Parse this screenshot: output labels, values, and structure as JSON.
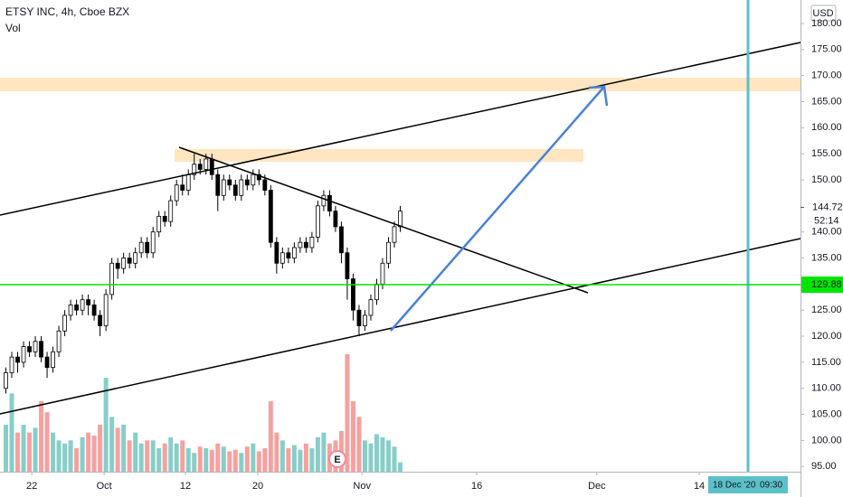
{
  "chart_data": {
    "type": "candlestick",
    "title": "ETSY INC, 4h, Cboe BZX",
    "subtitle": "Vol",
    "currency": "USD",
    "up_color": "#ffffff",
    "down_color": "#000000",
    "volume_up_color": "#26a69a",
    "volume_down_color": "#ef5350",
    "open": [
      110,
      113,
      116,
      115,
      118,
      117,
      119,
      116,
      114,
      117,
      121,
      124,
      126,
      125,
      127,
      126,
      124,
      122,
      128,
      134,
      133,
      135,
      134,
      136,
      138,
      136,
      140,
      143,
      142,
      146,
      149,
      148,
      151,
      153,
      152,
      154,
      151,
      147,
      150,
      149,
      147,
      150,
      149,
      151,
      150,
      148,
      138,
      134,
      136,
      135,
      137,
      138,
      137,
      139,
      145,
      147,
      144,
      141,
      136,
      131,
      125,
      122,
      124,
      127,
      130,
      134,
      138,
      141
    ],
    "high": [
      114,
      117,
      117,
      119,
      119,
      120,
      120,
      117,
      118,
      122,
      125,
      127,
      127,
      128,
      128,
      127,
      125,
      129,
      135,
      135,
      136,
      136,
      137,
      139,
      139,
      141,
      144,
      144,
      147,
      150,
      151,
      152,
      155,
      154,
      155,
      155,
      152,
      151,
      151,
      150,
      151,
      151,
      152,
      152,
      151,
      149,
      139,
      137,
      137,
      138,
      139,
      139,
      140,
      146,
      148,
      148,
      145,
      142,
      137,
      132,
      126,
      125,
      128,
      131,
      135,
      139,
      142,
      145
    ],
    "low": [
      109,
      112,
      113,
      114,
      116,
      116,
      115,
      112,
      113,
      116,
      120,
      123,
      124,
      124,
      124,
      123,
      120,
      121,
      127,
      131,
      132,
      133,
      133,
      135,
      135,
      135,
      139,
      141,
      141,
      145,
      147,
      147,
      150,
      151,
      151,
      150,
      144,
      146,
      148,
      146,
      146,
      148,
      148,
      149,
      147,
      137,
      132,
      133,
      134,
      134,
      136,
      136,
      136,
      138,
      144,
      143,
      140,
      134,
      127,
      123,
      120,
      121,
      123,
      126,
      129,
      133,
      137,
      140
    ],
    "close": [
      113,
      116,
      115,
      118,
      117,
      119,
      116,
      114,
      117,
      121,
      124,
      126,
      125,
      127,
      126,
      124,
      122,
      128,
      134,
      133,
      135,
      134,
      136,
      138,
      136,
      140,
      143,
      142,
      146,
      149,
      148,
      151,
      153,
      152,
      154,
      151,
      147,
      150,
      149,
      147,
      150,
      149,
      151,
      150,
      148,
      138,
      134,
      136,
      135,
      137,
      138,
      137,
      139,
      145,
      147,
      144,
      141,
      136,
      131,
      125,
      122,
      124,
      127,
      130,
      134,
      138,
      141,
      144
    ],
    "volume": [
      3,
      5,
      2.5,
      3,
      2.5,
      2.8,
      4.5,
      3.8,
      2.5,
      2,
      1.8,
      2,
      1.5,
      2.2,
      2.5,
      2.3,
      3,
      6,
      3.5,
      2.8,
      3,
      2,
      2.5,
      1.8,
      2,
      2,
      1.5,
      1.8,
      2.2,
      1.8,
      2,
      1.5,
      1.2,
      1.6,
      1.5,
      1.4,
      1.8,
      1.6,
      1.3,
      1.4,
      1.2,
      1.6,
      1.8,
      1.3,
      1.5,
      4.5,
      2.5,
      2,
      1.5,
      1.7,
      1.4,
      1.8,
      1.5,
      2.2,
      2.5,
      1.8,
      2,
      2.6,
      7.5,
      4.5,
      3.5,
      2,
      1.8,
      2.4,
      2.2,
      2,
      1.6,
      0.6
    ],
    "xlim": [
      -1,
      135
    ],
    "xticks": [
      {
        "value": 4.4,
        "label": "22"
      },
      {
        "value": 16.7,
        "label": "Oct"
      },
      {
        "value": 30.5,
        "label": "12"
      },
      {
        "value": 42.8,
        "label": "20"
      },
      {
        "value": 60.5,
        "label": "Nov"
      },
      {
        "value": 80,
        "label": "16"
      },
      {
        "value": 100.4,
        "label": "Dec"
      },
      {
        "value": 117.8,
        "label": "14"
      }
    ],
    "ylim": [
      94,
      184.5
    ],
    "yticks": [
      {
        "value": 180,
        "label": "180.00"
      },
      {
        "value": 175,
        "label": "175.00"
      },
      {
        "value": 170,
        "label": "170.00"
      },
      {
        "value": 165,
        "label": "165.00"
      },
      {
        "value": 160,
        "label": "160.00"
      },
      {
        "value": 155,
        "label": "155.00"
      },
      {
        "value": 150,
        "label": "150.00"
      },
      {
        "value": 140,
        "label": "140.00"
      },
      {
        "value": 135,
        "label": "135.00"
      },
      {
        "value": 125,
        "label": "125.00"
      },
      {
        "value": 120,
        "label": "120.00"
      },
      {
        "value": 115,
        "label": "115.00"
      },
      {
        "value": 110,
        "label": "110.00"
      },
      {
        "value": 105,
        "label": "105.00"
      },
      {
        "value": 100,
        "label": "100.00"
      },
      {
        "value": 95,
        "label": "95.00"
      }
    ],
    "last_price": 144.72,
    "countdown": "52:14",
    "horizontal_line": {
      "value": 129.88,
      "color": "#00e600"
    },
    "earnings_marker": "E",
    "cursor_date": "18 Dec '20",
    "cursor_time": "09:30"
  }
}
